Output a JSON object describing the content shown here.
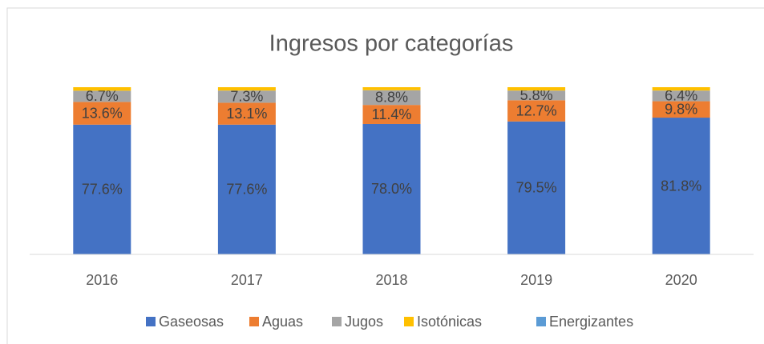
{
  "chart_data": {
    "type": "stacked_bar",
    "title": "Ingresos por categorías",
    "categories": [
      "2016",
      "2017",
      "2018",
      "2019",
      "2020"
    ],
    "series": [
      {
        "name": "Gaseosas",
        "color": "#4472c4",
        "values": [
          77.6,
          77.6,
          78.0,
          79.5,
          81.8
        ],
        "value_labels": [
          "77.6%",
          "77.6%",
          "78.0%",
          "79.5%",
          "81.8%"
        ]
      },
      {
        "name": "Aguas",
        "color": "#ed7d31",
        "values": [
          13.6,
          13.1,
          11.4,
          12.7,
          9.8
        ],
        "value_labels": [
          "13.6%",
          "13.1%",
          "11.4%",
          "12.7%",
          "9.8%"
        ]
      },
      {
        "name": "Jugos",
        "color": "#a5a5a5",
        "values": [
          6.7,
          7.3,
          8.8,
          5.8,
          6.4
        ],
        "value_labels": [
          "6.7%",
          "7.3%",
          "8.8%",
          "5.8%",
          "6.4%"
        ]
      },
      {
        "name": "Isotónicas",
        "color": "#ffc000",
        "values": [
          2.1,
          2.0,
          1.8,
          2.0,
          2.0
        ]
      },
      {
        "name": "Energizantes",
        "color": "#5b9bd5",
        "values": [
          0,
          0,
          0,
          0,
          0
        ]
      }
    ],
    "legend": "bottom"
  }
}
